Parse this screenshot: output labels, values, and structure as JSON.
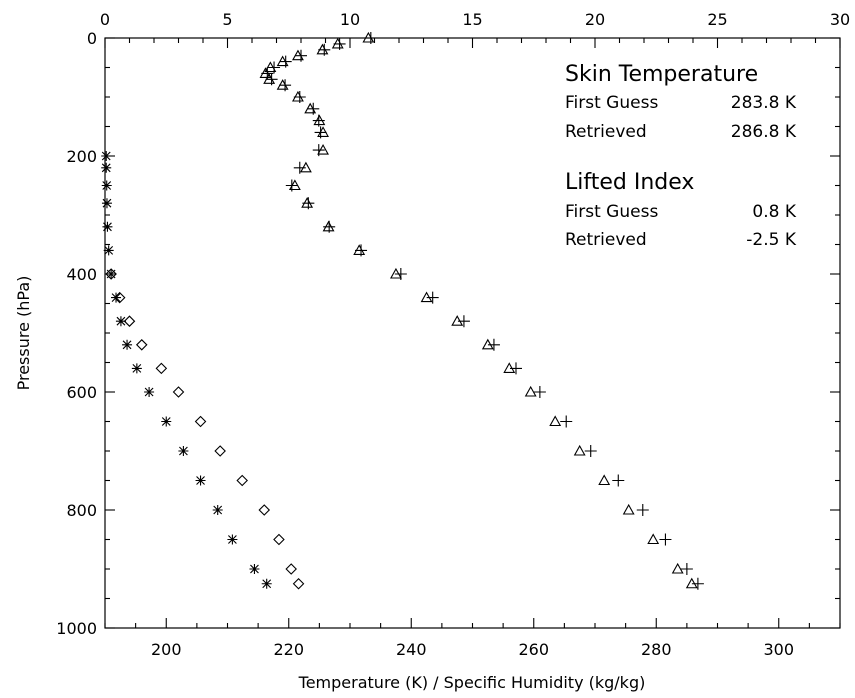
{
  "chart_data": {
    "type": "scatter",
    "title": "",
    "xlabel": "Temperature (K) / Specific Humidity (kg/kg)",
    "ylabel": "Pressure (hPa)",
    "x_bottom": {
      "range": [
        190,
        310
      ],
      "ticks": [
        200,
        220,
        240,
        260,
        280,
        300
      ]
    },
    "x_top": {
      "range": [
        0,
        30
      ],
      "ticks": [
        0,
        5,
        10,
        15,
        20,
        25,
        30
      ]
    },
    "y": {
      "range": [
        1000,
        0
      ],
      "ticks": [
        0,
        200,
        400,
        600,
        800,
        1000
      ],
      "inverted": true
    },
    "grid": false,
    "series": [
      {
        "marker": "triangle",
        "axis": "bottom",
        "points": [
          [
            233.0,
            0
          ],
          [
            228.0,
            10
          ],
          [
            225.5,
            20
          ],
          [
            221.5,
            30
          ],
          [
            219.0,
            40
          ],
          [
            217.0,
            50
          ],
          [
            216.2,
            60
          ],
          [
            216.8,
            70
          ],
          [
            219.0,
            80
          ],
          [
            221.5,
            100
          ],
          [
            223.5,
            120
          ],
          [
            225.0,
            140
          ],
          [
            225.6,
            160
          ],
          [
            225.6,
            190
          ],
          [
            222.8,
            220
          ],
          [
            221.0,
            250
          ],
          [
            223.0,
            280
          ],
          [
            226.5,
            320
          ],
          [
            231.5,
            360
          ],
          [
            237.5,
            400
          ],
          [
            242.5,
            440
          ],
          [
            247.5,
            480
          ],
          [
            252.5,
            520
          ],
          [
            256.0,
            560
          ],
          [
            259.5,
            600
          ],
          [
            263.5,
            650
          ],
          [
            267.5,
            700
          ],
          [
            271.5,
            750
          ],
          [
            275.5,
            800
          ],
          [
            279.5,
            850
          ],
          [
            283.5,
            900
          ],
          [
            285.8,
            925
          ]
        ]
      },
      {
        "marker": "plus",
        "axis": "bottom",
        "points": [
          [
            233.4,
            0
          ],
          [
            228.3,
            10
          ],
          [
            225.8,
            20
          ],
          [
            222.0,
            30
          ],
          [
            219.5,
            40
          ],
          [
            217.6,
            50
          ],
          [
            216.5,
            60
          ],
          [
            217.2,
            70
          ],
          [
            219.4,
            80
          ],
          [
            221.8,
            100
          ],
          [
            224.0,
            120
          ],
          [
            224.9,
            140
          ],
          [
            225.2,
            160
          ],
          [
            224.9,
            190
          ],
          [
            221.8,
            220
          ],
          [
            220.5,
            250
          ],
          [
            223.2,
            280
          ],
          [
            226.6,
            320
          ],
          [
            231.8,
            360
          ],
          [
            238.3,
            400
          ],
          [
            243.5,
            440
          ],
          [
            248.6,
            480
          ],
          [
            253.5,
            520
          ],
          [
            257.1,
            560
          ],
          [
            261.0,
            600
          ],
          [
            265.3,
            650
          ],
          [
            269.3,
            700
          ],
          [
            273.8,
            750
          ],
          [
            277.8,
            800
          ],
          [
            281.5,
            850
          ],
          [
            285.0,
            900
          ],
          [
            286.8,
            925
          ]
        ]
      },
      {
        "marker": "asterisk",
        "axis": "top",
        "points": [
          [
            0.05,
            200
          ],
          [
            0.05,
            220
          ],
          [
            0.07,
            250
          ],
          [
            0.08,
            280
          ],
          [
            0.1,
            320
          ],
          [
            0.15,
            360
          ],
          [
            0.25,
            400
          ],
          [
            0.45,
            440
          ],
          [
            0.65,
            480
          ],
          [
            0.9,
            520
          ],
          [
            1.3,
            560
          ],
          [
            1.8,
            600
          ],
          [
            2.5,
            650
          ],
          [
            3.2,
            700
          ],
          [
            3.9,
            750
          ],
          [
            4.6,
            800
          ],
          [
            5.2,
            850
          ],
          [
            6.1,
            900
          ],
          [
            6.6,
            925
          ]
        ]
      },
      {
        "marker": "diamond",
        "axis": "top",
        "points": [
          [
            0.25,
            400
          ],
          [
            0.6,
            440
          ],
          [
            1.0,
            480
          ],
          [
            1.5,
            520
          ],
          [
            2.3,
            560
          ],
          [
            3.0,
            600
          ],
          [
            3.9,
            650
          ],
          [
            4.7,
            700
          ],
          [
            5.6,
            750
          ],
          [
            6.5,
            800
          ],
          [
            7.1,
            850
          ],
          [
            7.6,
            900
          ],
          [
            7.9,
            925
          ]
        ]
      }
    ],
    "annotations": {
      "skin_title": "Skin Temperature",
      "skin_first_label": "First Guess",
      "skin_first_value": "283.8 K",
      "skin_retr_label": "Retrieved",
      "skin_retr_value": "286.8 K",
      "li_title": "Lifted Index",
      "li_first_label": "First Guess",
      "li_first_value": "0.8 K",
      "li_retr_label": "Retrieved",
      "li_retr_value": "-2.5 K"
    }
  }
}
